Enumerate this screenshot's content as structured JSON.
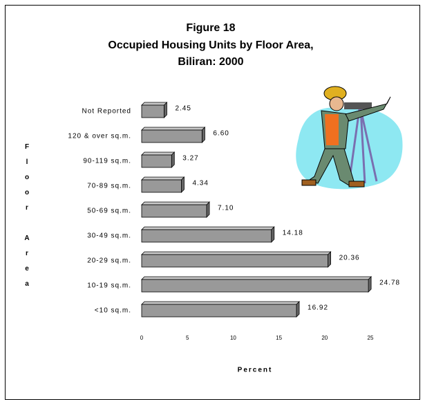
{
  "chart_data": {
    "type": "bar",
    "orientation": "horizontal",
    "title": [
      "Figure 18",
      "Occupied Housing Units by Floor Area,",
      "Biliran: 2000"
    ],
    "y_label": "Floor Area",
    "x_label": "Percent",
    "categories": [
      "Not Reported",
      "120 & over sq.m.",
      "90-119 sq.m.",
      "70-89 sq.m.",
      "50-69 sq.m.",
      "30-49 sq.m.",
      "20-29 sq.m.",
      "10-19 sq.m.",
      "<10 sq.m."
    ],
    "values": [
      2.45,
      6.6,
      3.27,
      4.34,
      7.1,
      14.18,
      20.36,
      24.78,
      16.92
    ],
    "value_labels": [
      "2.45",
      "6.60",
      "3.27",
      "4.34",
      "7.10",
      "14.18",
      "20.36",
      "24.78",
      "16.92"
    ],
    "color": "#999999",
    "xlim": [
      0,
      25
    ],
    "xticks": [
      0,
      5,
      10,
      15,
      20,
      25
    ],
    "grid": false
  }
}
